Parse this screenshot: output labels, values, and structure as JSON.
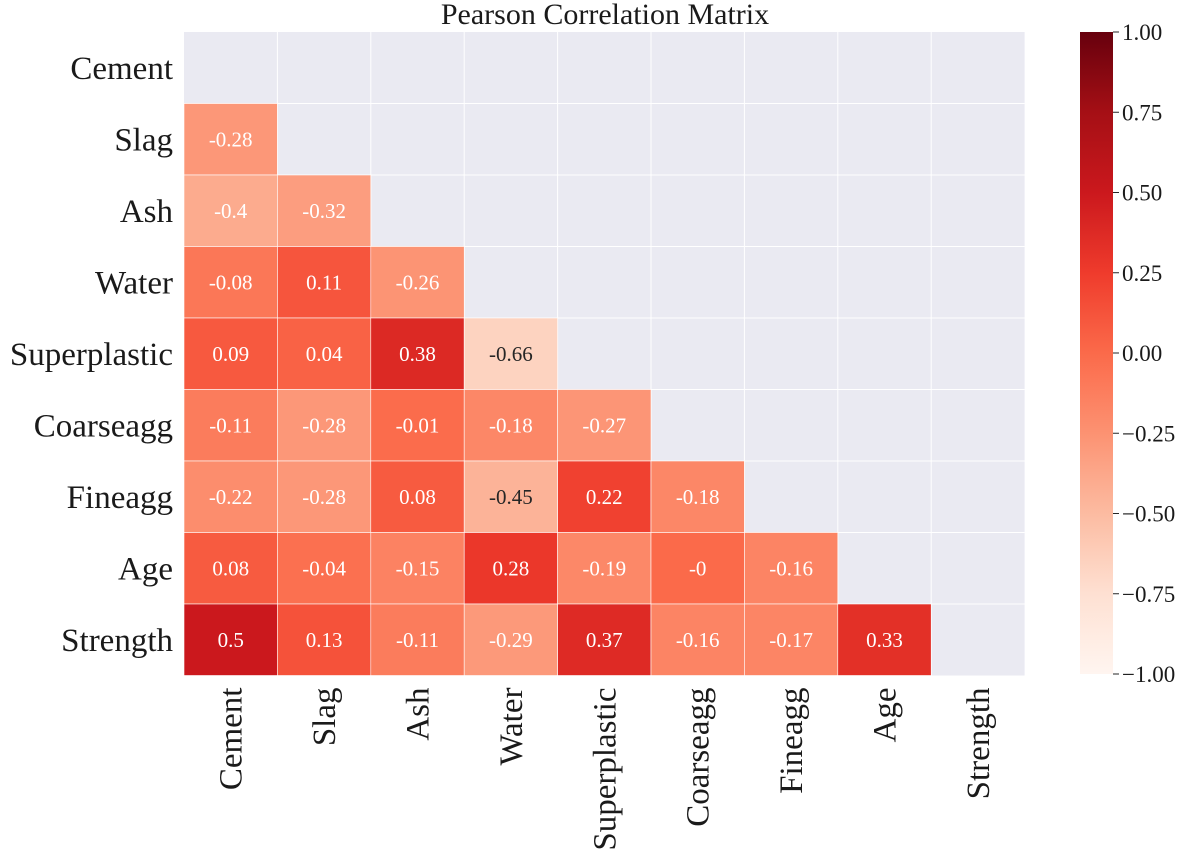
{
  "chart_data": {
    "type": "heatmap",
    "title": "Pearson Correlation Matrix",
    "variables": [
      "Cement",
      "Slag",
      "Ash",
      "Water",
      "Superplastic",
      "Coarseagg",
      "Fineagg",
      "Age",
      "Strength"
    ],
    "mask": "upper-triangle-and-diagonal",
    "cells": [
      {
        "row": 1,
        "col": 0,
        "value": -0.28,
        "label": "-0.28"
      },
      {
        "row": 2,
        "col": 0,
        "value": -0.4,
        "label": "-0.4"
      },
      {
        "row": 2,
        "col": 1,
        "value": -0.32,
        "label": "-0.32"
      },
      {
        "row": 3,
        "col": 0,
        "value": -0.08,
        "label": "-0.08"
      },
      {
        "row": 3,
        "col": 1,
        "value": 0.11,
        "label": "0.11"
      },
      {
        "row": 3,
        "col": 2,
        "value": -0.26,
        "label": "-0.26"
      },
      {
        "row": 4,
        "col": 0,
        "value": 0.09,
        "label": "0.09"
      },
      {
        "row": 4,
        "col": 1,
        "value": 0.04,
        "label": "0.04"
      },
      {
        "row": 4,
        "col": 2,
        "value": 0.38,
        "label": "0.38"
      },
      {
        "row": 4,
        "col": 3,
        "value": -0.66,
        "label": "-0.66"
      },
      {
        "row": 5,
        "col": 0,
        "value": -0.11,
        "label": "-0.11"
      },
      {
        "row": 5,
        "col": 1,
        "value": -0.28,
        "label": "-0.28"
      },
      {
        "row": 5,
        "col": 2,
        "value": -0.01,
        "label": "-0.01"
      },
      {
        "row": 5,
        "col": 3,
        "value": -0.18,
        "label": "-0.18"
      },
      {
        "row": 5,
        "col": 4,
        "value": -0.27,
        "label": "-0.27"
      },
      {
        "row": 6,
        "col": 0,
        "value": -0.22,
        "label": "-0.22"
      },
      {
        "row": 6,
        "col": 1,
        "value": -0.28,
        "label": "-0.28"
      },
      {
        "row": 6,
        "col": 2,
        "value": 0.08,
        "label": "0.08"
      },
      {
        "row": 6,
        "col": 3,
        "value": -0.45,
        "label": "-0.45"
      },
      {
        "row": 6,
        "col": 4,
        "value": 0.22,
        "label": "0.22"
      },
      {
        "row": 6,
        "col": 5,
        "value": -0.18,
        "label": "-0.18"
      },
      {
        "row": 7,
        "col": 0,
        "value": 0.08,
        "label": "0.08"
      },
      {
        "row": 7,
        "col": 1,
        "value": -0.04,
        "label": "-0.04"
      },
      {
        "row": 7,
        "col": 2,
        "value": -0.15,
        "label": "-0.15"
      },
      {
        "row": 7,
        "col": 3,
        "value": 0.28,
        "label": "0.28"
      },
      {
        "row": 7,
        "col": 4,
        "value": -0.19,
        "label": "-0.19"
      },
      {
        "row": 7,
        "col": 5,
        "value": 0.0,
        "label": "-0"
      },
      {
        "row": 7,
        "col": 6,
        "value": -0.16,
        "label": "-0.16"
      },
      {
        "row": 8,
        "col": 0,
        "value": 0.5,
        "label": "0.5"
      },
      {
        "row": 8,
        "col": 1,
        "value": 0.13,
        "label": "0.13"
      },
      {
        "row": 8,
        "col": 2,
        "value": -0.11,
        "label": "-0.11"
      },
      {
        "row": 8,
        "col": 3,
        "value": -0.29,
        "label": "-0.29"
      },
      {
        "row": 8,
        "col": 4,
        "value": 0.37,
        "label": "0.37"
      },
      {
        "row": 8,
        "col": 5,
        "value": -0.16,
        "label": "-0.16"
      },
      {
        "row": 8,
        "col": 6,
        "value": -0.17,
        "label": "-0.17"
      },
      {
        "row": 8,
        "col": 7,
        "value": 0.33,
        "label": "0.33"
      }
    ],
    "colorbar": {
      "min": -1.0,
      "max": 1.0,
      "colormap": "Reds",
      "ticks": [
        1.0,
        0.75,
        0.5,
        0.25,
        0.0,
        -0.25,
        -0.5,
        -0.75,
        -1.0
      ],
      "tick_labels": [
        "1.00",
        "0.75",
        "0.50",
        "0.25",
        "0.00",
        "−0.25",
        "−0.50",
        "−0.75",
        "−1.00"
      ]
    },
    "colors": {
      "masked_background": "#eaeaf2",
      "grid": "#ffffff",
      "text_dark": "#262626",
      "text_light": "#ffffff"
    }
  }
}
